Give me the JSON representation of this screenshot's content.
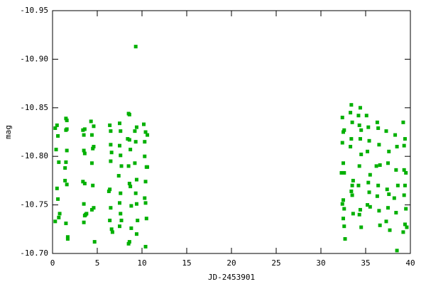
{
  "chart_data": {
    "type": "scatter",
    "xlabel": "JD-2453901",
    "ylabel": "mag",
    "color": "#00b000",
    "xlim": [
      0,
      40
    ],
    "xticks": [
      0,
      5,
      10,
      15,
      20,
      25,
      30,
      35,
      40
    ],
    "ylim": [
      -10.7,
      -10.95
    ],
    "yticks": [
      -10.95,
      {
        "value": -10.9,
        "label": "-10.90"
      },
      -10.85,
      {
        "value": -10.8,
        "label": "-10.80"
      },
      -10.75,
      {
        "value": -10.7,
        "label": "-10.70"
      }
    ],
    "x": [
      0.3,
      0.5,
      0.6,
      0.4,
      0.7,
      0.5,
      0.6,
      0.7,
      0.3,
      0.8,
      1.5,
      1.6,
      1.6,
      1.5,
      1.6,
      1.5,
      1.4,
      1.4,
      1.6,
      1.5,
      1.7,
      1.7,
      3.4,
      3.5,
      3.6,
      3.5,
      3.6,
      3.4,
      3.6,
      3.5,
      3.7,
      3.6,
      3.5,
      3.8,
      4.3,
      4.4,
      4.6,
      4.5,
      4.6,
      4.4,
      4.5,
      4.6,
      4.4,
      4.7,
      6.4,
      6.5,
      6.5,
      6.6,
      6.5,
      6.3,
      6.4,
      6.5,
      6.4,
      6.6,
      6.7,
      7.5,
      7.6,
      7.5,
      7.6,
      7.7,
      7.4,
      7.6,
      7.5,
      7.6,
      7.7,
      7.5,
      8.5,
      8.6,
      8.4,
      8.6,
      8.7,
      8.5,
      8.6,
      8.7,
      8.8,
      8.6,
      8.5,
      8.8,
      9.3,
      9.2,
      9.4,
      9.3,
      9.2,
      9.4,
      9.3,
      9.4,
      9.5,
      9.4,
      10.2,
      10.4,
      10.3,
      10.3,
      10.5,
      10.6,
      10.4,
      10.4,
      10.3,
      10.5,
      10.4,
      10.6,
      32.4,
      32.5,
      32.6,
      32.4,
      32.5,
      32.3,
      32.6,
      32.5,
      32.4,
      32.6,
      32.5,
      32.6,
      32.7,
      33.3,
      33.4,
      33.5,
      33.4,
      33.3,
      33.6,
      33.5,
      33.4,
      33.6,
      33.5,
      34.3,
      34.4,
      34.2,
      34.5,
      34.4,
      34.5,
      34.3,
      34.2,
      34.4,
      34.3,
      34.5,
      35.1,
      35.3,
      35.4,
      35.2,
      35.5,
      35.3,
      35.4,
      35.2,
      35.5,
      36.3,
      36.4,
      36.5,
      36.2,
      36.6,
      36.4,
      36.3,
      36.5,
      36.6,
      37.3,
      37.6,
      37.5,
      37.4,
      37.6,
      37.5,
      37.3,
      37.7,
      38.3,
      38.5,
      38.4,
      38.6,
      38.2,
      38.4,
      38.5,
      39.2,
      39.4,
      39.3,
      39.3,
      39.5,
      39.4,
      39.3,
      39.5,
      39.4,
      39.2,
      39.6
    ],
    "values": [
      -10.829,
      -10.832,
      -10.821,
      -10.807,
      -10.794,
      -10.767,
      -10.756,
      -10.737,
      -10.733,
      -10.741,
      -10.839,
      -10.837,
      -10.828,
      -10.827,
      -10.806,
      -10.794,
      -10.788,
      -10.775,
      -10.771,
      -10.731,
      -10.717,
      -10.715,
      -10.827,
      -10.822,
      -10.828,
      -10.806,
      -10.803,
      -10.774,
      -10.772,
      -10.751,
      -10.74,
      -10.739,
      -10.732,
      -10.741,
      -10.836,
      -10.822,
      -10.831,
      -10.808,
      -10.81,
      -10.793,
      -10.77,
      -10.747,
      -10.745,
      -10.712,
      -10.832,
      -10.826,
      -10.812,
      -10.804,
      -10.795,
      -10.764,
      -10.766,
      -10.747,
      -10.734,
      -10.725,
      -10.722,
      -10.834,
      -10.826,
      -10.811,
      -10.801,
      -10.79,
      -10.78,
      -10.762,
      -10.752,
      -10.741,
      -10.734,
      -10.728,
      -10.844,
      -10.843,
      -10.818,
      -10.817,
      -10.807,
      -10.79,
      -10.772,
      -10.769,
      -10.749,
      -10.712,
      -10.71,
      -10.726,
      -10.913,
      -10.826,
      -10.83,
      -10.815,
      -10.793,
      -10.776,
      -10.762,
      -10.751,
      -10.734,
      -10.72,
      -10.833,
      -10.825,
      -10.815,
      -10.8,
      -10.789,
      -10.789,
      -10.774,
      -10.752,
      -10.757,
      -10.736,
      -10.707,
      -10.822,
      -10.84,
      -10.825,
      -10.827,
      -10.814,
      -10.793,
      -10.783,
      -10.783,
      -10.755,
      -10.751,
      -10.746,
      -10.736,
      -10.728,
      -10.715,
      -10.845,
      -10.853,
      -10.835,
      -10.818,
      -10.81,
      -10.775,
      -10.77,
      -10.764,
      -10.741,
      -10.76,
      -10.832,
      -10.85,
      -10.842,
      -10.827,
      -10.818,
      -10.802,
      -10.79,
      -10.77,
      -10.745,
      -10.74,
      -10.727,
      -10.842,
      -10.83,
      -10.816,
      -10.805,
      -10.781,
      -10.773,
      -10.763,
      -10.75,
      -10.748,
      -10.835,
      -10.829,
      -10.812,
      -10.79,
      -10.791,
      -10.77,
      -10.759,
      -10.744,
      -10.729,
      -10.826,
      -10.805,
      -10.793,
      -10.766,
      -10.761,
      -10.747,
      -10.733,
      -10.724,
      -10.822,
      -10.81,
      -10.786,
      -10.77,
      -10.757,
      -10.742,
      -10.703,
      -10.835,
      -10.818,
      -10.811,
      -10.786,
      -10.783,
      -10.77,
      -10.76,
      -10.746,
      -10.73,
      -10.722,
      -10.727
    ]
  }
}
